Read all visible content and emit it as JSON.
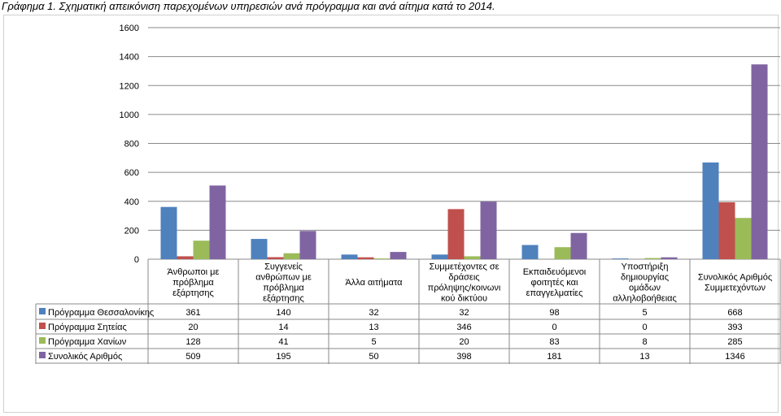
{
  "caption": "Γράφημα 1. Σχηματική απεικόνιση παρεχομένων υπηρεσιών ανά πρόγραμμα και ανά αίτημα κατά το 2014.",
  "chart_data": {
    "type": "bar",
    "ylim": [
      0,
      1600
    ],
    "yticks": [
      0,
      200,
      400,
      600,
      800,
      1000,
      1200,
      1400,
      1600
    ],
    "grid": true,
    "legend": "data-table-left",
    "categories": [
      [
        "Άνθρωποι με",
        "πρόβλημα",
        "εξάρτησης"
      ],
      [
        "Συγγενείς",
        "ανθρώπων με",
        "πρόβλημα",
        "εξάρτησης"
      ],
      [
        "Άλλα αιτήματα"
      ],
      [
        "Συμμετέχοντες σε",
        "δράσεις",
        "πρόληψης/κοινωνι",
        "κού δικτύου"
      ],
      [
        "Εκπαιδευόμενοι",
        "φοιτητές και",
        "επαγγελματίες"
      ],
      [
        "Υποστήριξη",
        "δημιουργίας",
        "ομάδων",
        "αλληλοβοήθειας"
      ],
      [
        "Συνολικός Αριθμός",
        "Συμμετεχόντων"
      ]
    ],
    "series": [
      {
        "name": "Πρόγραμμα Θεσσαλονίκης",
        "color": "#4F81BD",
        "values": [
          361,
          140,
          32,
          32,
          98,
          5,
          668
        ]
      },
      {
        "name": "Πρόγραμμα Σητείας",
        "color": "#C0504D",
        "values": [
          20,
          14,
          13,
          346,
          0,
          0,
          393
        ]
      },
      {
        "name": "Πρόγραμμα Χανίων",
        "color": "#9BBB59",
        "values": [
          128,
          41,
          5,
          20,
          83,
          8,
          285
        ]
      },
      {
        "name": "Συνολικός Αριθμός",
        "color": "#8064A2",
        "values": [
          509,
          195,
          50,
          398,
          181,
          13,
          1346
        ]
      }
    ]
  }
}
